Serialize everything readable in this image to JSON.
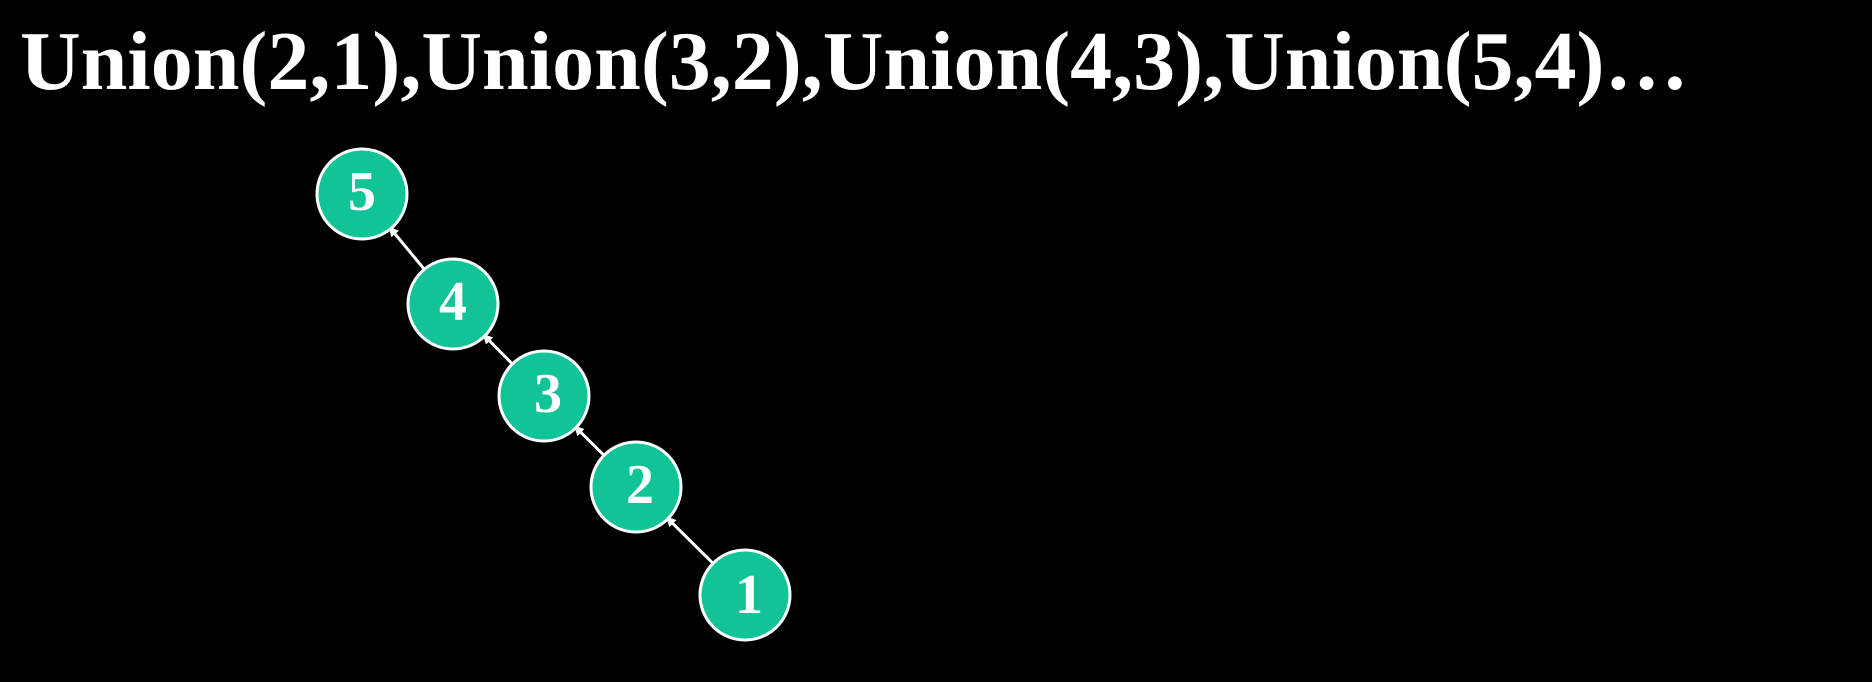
{
  "title": "Union(2,1),Union(3,2),Union(4,3),Union(5,4)…",
  "colors": {
    "background": "#000000",
    "node_fill": "#10C497",
    "node_stroke": "#ffffff",
    "text": "#ffffff",
    "arrow": "#ffffff"
  },
  "nodes": [
    {
      "id": "5",
      "label": "5"
    },
    {
      "id": "4",
      "label": "4"
    },
    {
      "id": "3",
      "label": "3"
    },
    {
      "id": "2",
      "label": "2"
    },
    {
      "id": "1",
      "label": "1"
    }
  ],
  "edges": [
    {
      "from": "4",
      "to": "5"
    },
    {
      "from": "3",
      "to": "4"
    },
    {
      "from": "2",
      "to": "3"
    },
    {
      "from": "1",
      "to": "2"
    }
  ]
}
